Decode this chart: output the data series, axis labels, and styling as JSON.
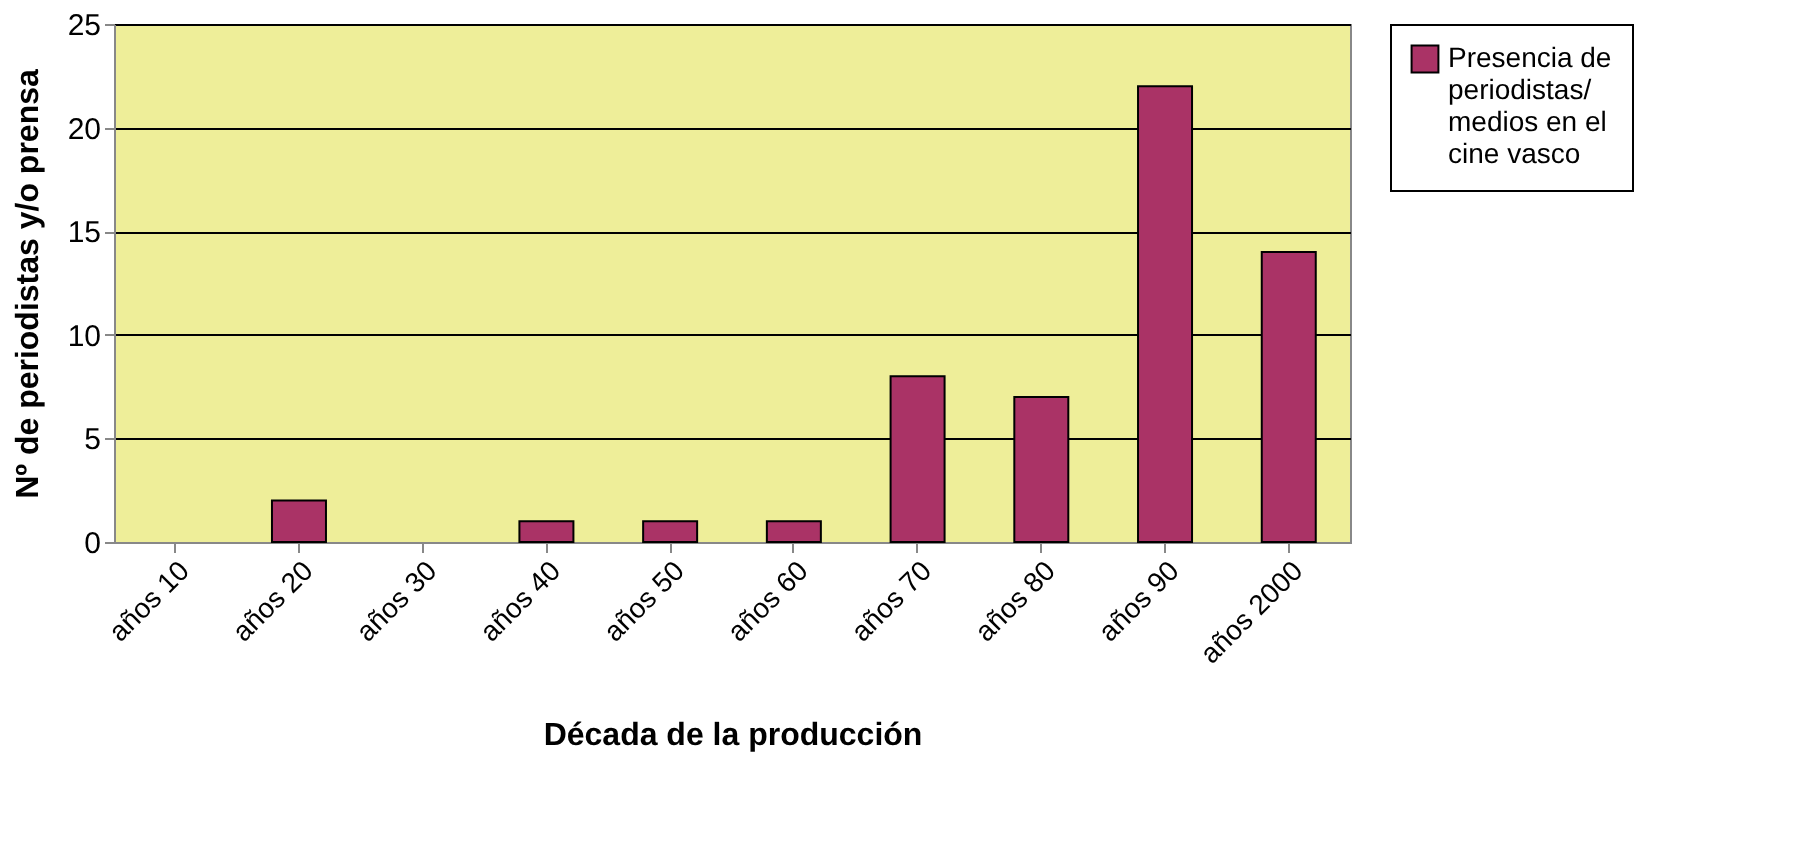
{
  "chart_data": {
    "type": "bar",
    "xlabel": "Década de la producción",
    "ylabel": "Nº de periodistas y/o prensa",
    "categories": [
      "años 10",
      "años 20",
      "años 30",
      "años 40",
      "años 50",
      "años 60",
      "años 70",
      "años 80",
      "años 90",
      "años 2000"
    ],
    "series": [
      {
        "name": "Presencia de periodistas/ medios en el cine vasco",
        "color": "#aa3366",
        "values": [
          0,
          2,
          0,
          1,
          1,
          1,
          8,
          7,
          22,
          14
        ]
      }
    ],
    "ylim": [
      0,
      25
    ],
    "yticks": [
      0,
      5,
      10,
      15,
      20,
      25
    ],
    "grid": "y",
    "legend": "right"
  }
}
